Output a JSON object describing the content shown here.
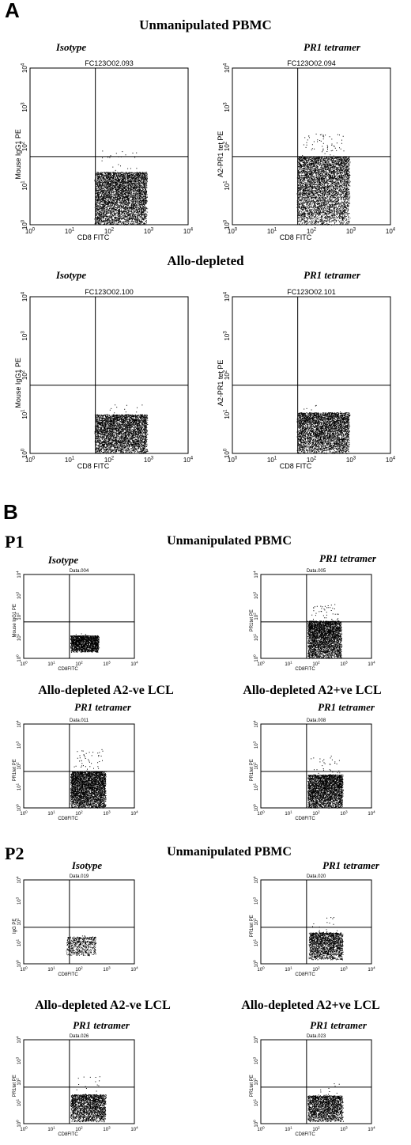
{
  "panelA": {
    "letter": "A",
    "row1_title": "Unmanipulated PBMC",
    "row2_title": "Allo-depleted",
    "plots": [
      {
        "stain": "Isotype",
        "file": "FC123O02.093",
        "ylabel": "Mouse IgG1 PE",
        "xlabel": "CD8 FITC"
      },
      {
        "stain": "PR1 tetramer",
        "file": "FC123O02.094",
        "ylabel": "A2-PR1 tet PE",
        "xlabel": "CD8 FITC"
      },
      {
        "stain": "Isotype",
        "file": "FC123O02.100",
        "ylabel": "Mouse IgG1 PE",
        "xlabel": "CD8 FITC"
      },
      {
        "stain": "PR1 tetramer",
        "file": "FC123O02.101",
        "ylabel": "A2-PR1 tet PE",
        "xlabel": "CD8 FITC"
      }
    ]
  },
  "panelB": {
    "letter": "B",
    "p1": {
      "label": "P1",
      "row1_title": "Unmanipulated PBMC",
      "row2_left": "Allo-depleted A2-ve LCL",
      "row2_right": "Allo-depleted A2+ve LCL",
      "plots": [
        {
          "stain": "Isotype",
          "file": "Data.004",
          "ylabel": "Mouse IgG1 PE",
          "xlabel": "CD8FITC"
        },
        {
          "stain": "PR1 tetramer",
          "file": "Data.005",
          "ylabel": "PR1tet PE",
          "xlabel": "CD8FITC"
        },
        {
          "stain": "PR1 tetramer",
          "file": "Data.011",
          "ylabel": "PR1tet PE",
          "xlabel": "CD8FITC"
        },
        {
          "stain": "PR1 tetramer",
          "file": "Data.008",
          "ylabel": "PR1tet PE",
          "xlabel": "CD8FITC"
        }
      ]
    },
    "p2": {
      "label": "P2",
      "row1_title": "Unmanipulated PBMC",
      "row2_left": "Allo-depleted A2-ve LCL",
      "row2_right": "Allo-depleted A2+ve LCL",
      "plots": [
        {
          "stain": "Isotype",
          "file": "Data.019",
          "ylabel": "IgG PE",
          "xlabel": "CD8FITC"
        },
        {
          "stain": "PR1 tetramer",
          "file": "Data.020",
          "ylabel": "PR1tet PE",
          "xlabel": "CD8FITC"
        },
        {
          "stain": "PR1 tetramer",
          "file": "Data.026",
          "ylabel": "PR1tet PE",
          "xlabel": "CD8FITC"
        },
        {
          "stain": "PR1 tetramer",
          "file": "Data.023",
          "ylabel": "PR1tet PE",
          "xlabel": "CD8FITC"
        }
      ]
    }
  },
  "chart_data": [
    {
      "type": "scatter",
      "title": "Isotype",
      "xlabel": "CD8 FITC",
      "ylabel": "Mouse IgG1 PE",
      "xscale": "log",
      "yscale": "log",
      "xlim": [
        1,
        10000
      ],
      "ylim": [
        1,
        10000
      ],
      "xticks": [
        "10^0",
        "10^1",
        "10^2",
        "10^3",
        "10^4"
      ],
      "yticks": [
        "10^0",
        "10^1",
        "10^2",
        "10^3",
        "10^4"
      ],
      "gate": {
        "x": 45,
        "y": 55
      },
      "population": {
        "x_range": [
          45,
          900
        ],
        "y_range": [
          1,
          40
        ],
        "density": "very high"
      }
    },
    {
      "type": "scatter",
      "title": "PR1 tetramer",
      "xlabel": "CD8 FITC",
      "ylabel": "A2-PR1 tet PE",
      "xscale": "log",
      "yscale": "log",
      "xlim": [
        1,
        10000
      ],
      "ylim": [
        1,
        10000
      ],
      "gate": {
        "x": 45,
        "y": 55
      },
      "population": {
        "x_range": [
          45,
          900
        ],
        "y_range": [
          1,
          200
        ],
        "density": "very high"
      }
    },
    {
      "type": "scatter",
      "title": "Isotype",
      "xlabel": "CD8 FITC",
      "ylabel": "Mouse IgG1 PE",
      "xscale": "log",
      "yscale": "log",
      "xlim": [
        1,
        10000
      ],
      "ylim": [
        1,
        10000
      ],
      "gate": {
        "x": 45,
        "y": 55
      },
      "population": {
        "x_range": [
          45,
          900
        ],
        "y_range": [
          1,
          20
        ],
        "density": "high"
      }
    },
    {
      "type": "scatter",
      "title": "PR1 tetramer",
      "xlabel": "CD8 FITC",
      "ylabel": "A2-PR1 tet PE",
      "xscale": "log",
      "yscale": "log",
      "xlim": [
        1,
        10000
      ],
      "ylim": [
        1,
        10000
      ],
      "gate": {
        "x": 45,
        "y": 55
      },
      "population": {
        "x_range": [
          45,
          900
        ],
        "y_range": [
          1,
          20
        ],
        "density": "high"
      }
    }
  ]
}
